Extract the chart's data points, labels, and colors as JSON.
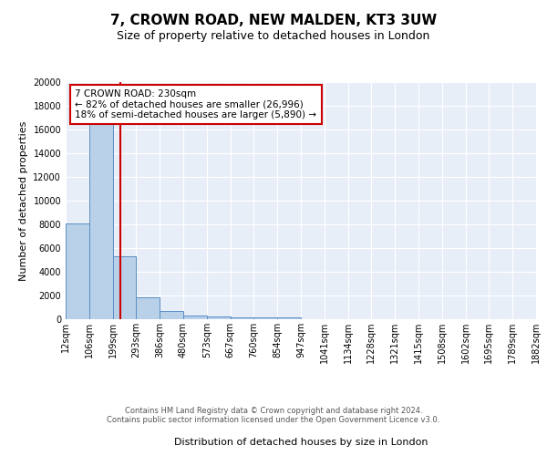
{
  "title1": "7, CROWN ROAD, NEW MALDEN, KT3 3UW",
  "title2": "Size of property relative to detached houses in London",
  "xlabel": "Distribution of detached houses by size in London",
  "ylabel": "Number of detached properties",
  "bin_labels": [
    "12sqm",
    "106sqm",
    "199sqm",
    "293sqm",
    "386sqm",
    "480sqm",
    "573sqm",
    "667sqm",
    "760sqm",
    "854sqm",
    "947sqm",
    "1041sqm",
    "1134sqm",
    "1228sqm",
    "1321sqm",
    "1415sqm",
    "1508sqm",
    "1602sqm",
    "1695sqm",
    "1789sqm",
    "1882sqm"
  ],
  "bar_heights": [
    8100,
    16500,
    5300,
    1850,
    700,
    310,
    220,
    190,
    165,
    130,
    0,
    0,
    0,
    0,
    0,
    0,
    0,
    0,
    0,
    0
  ],
  "bar_color": "#b8d0e8",
  "bar_edge_color": "#5b8ec4",
  "vline_color": "#cc0000",
  "annotation_text": "7 CROWN ROAD: 230sqm\n← 82% of detached houses are smaller (26,996)\n18% of semi-detached houses are larger (5,890) →",
  "annotation_box_color": "#ffffff",
  "annotation_box_edge": "#cc0000",
  "ylim": [
    0,
    20000
  ],
  "yticks": [
    0,
    2000,
    4000,
    6000,
    8000,
    10000,
    12000,
    14000,
    16000,
    18000,
    20000
  ],
  "background_color": "#e8eef8",
  "footer_text": "Contains HM Land Registry data © Crown copyright and database right 2024.\nContains public sector information licensed under the Open Government Licence v3.0.",
  "title1_fontsize": 11,
  "title2_fontsize": 9,
  "xlabel_fontsize": 8,
  "ylabel_fontsize": 8,
  "tick_fontsize": 7,
  "annotation_fontsize": 7.5,
  "footer_fontsize": 6
}
